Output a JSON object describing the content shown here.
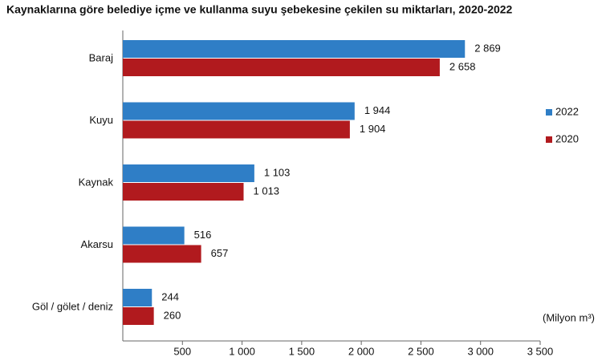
{
  "chart_data": {
    "type": "barh",
    "title": "Kaynaklarına göre belediye içme ve kullanma suyu şebekesine çekilen su miktarları, 2020-2022",
    "unit_label": "(Milyon m³)",
    "categories": [
      "Baraj",
      "Kuyu",
      "Kaynak",
      "Akarsu",
      "Göl / gölet / deniz"
    ],
    "series": [
      {
        "name": "2022",
        "color": "#2f7ec6",
        "values": [
          2869,
          1944,
          1103,
          516,
          244
        ],
        "value_labels": [
          "2 869",
          "1 944",
          "1 103",
          "516",
          "244"
        ]
      },
      {
        "name": "2020",
        "color": "#b11a1e",
        "values": [
          2658,
          1904,
          1013,
          657,
          260
        ],
        "value_labels": [
          "2 658",
          "1 904",
          "1 013",
          "657",
          "260"
        ]
      }
    ],
    "xlim": [
      0,
      3500
    ],
    "xticks": [
      500,
      {
        "value": 1000,
        "label": "1 000"
      },
      {
        "value": 1500,
        "label": "1 500"
      },
      {
        "value": 2000,
        "label": "2 000"
      },
      {
        "value": 2500,
        "label": "2 500"
      },
      {
        "value": 3000,
        "label": "3 000"
      },
      {
        "value": 3500,
        "label": "3 500"
      }
    ],
    "legend": "right"
  }
}
